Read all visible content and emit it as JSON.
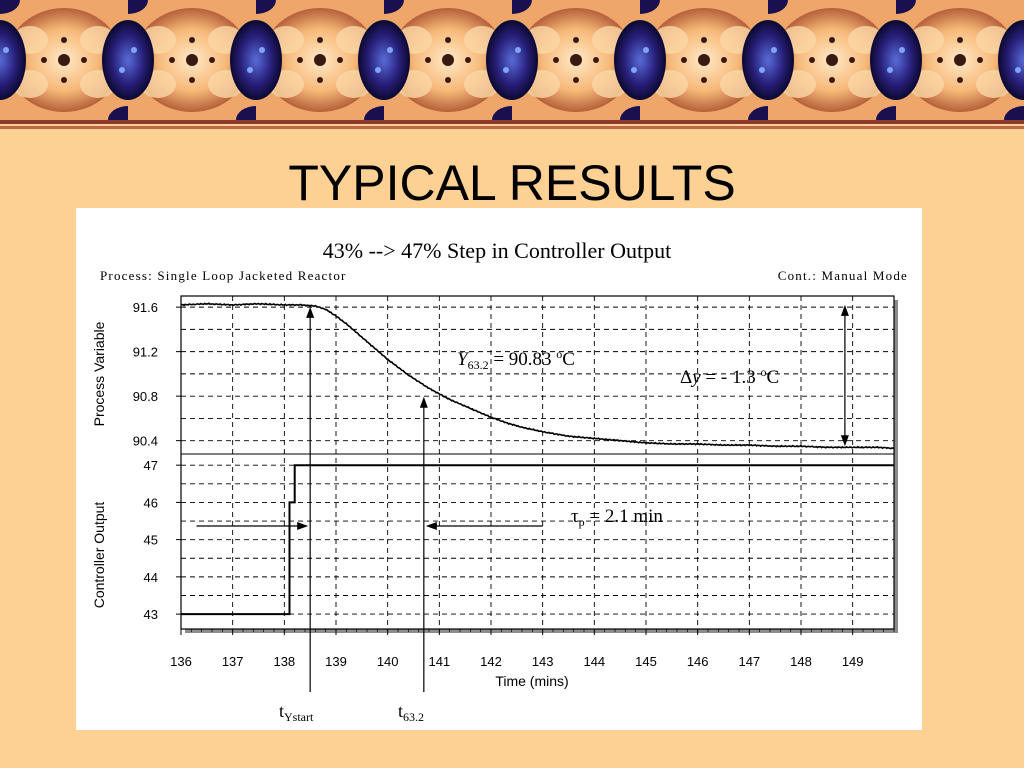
{
  "slide": {
    "title": "TYPICAL RESULTS"
  },
  "chart_data": {
    "type": "line",
    "title": "43% --> 47% Step in Controller Output",
    "subtitle_left": "Process: Single Loop Jacketed Reactor",
    "subtitle_right": "Cont.: Manual Mode",
    "xlabel": "Time (mins)",
    "xlim": [
      136,
      149.8
    ],
    "xticks": [
      136,
      137,
      138,
      139,
      140,
      141,
      142,
      143,
      144,
      145,
      146,
      147,
      148,
      149
    ],
    "grid": true,
    "panels": [
      {
        "name": "process-variable",
        "ylabel": "Process Variable",
        "ylim": [
          90.28,
          91.7
        ],
        "yticks": [
          "91.6",
          "91.2",
          "90.8",
          "90.4"
        ],
        "x": [
          136.0,
          136.5,
          137.0,
          137.5,
          138.0,
          138.3,
          138.6,
          138.8,
          139.0,
          139.2,
          139.4,
          139.6,
          139.8,
          140.0,
          140.2,
          140.4,
          140.6,
          140.8,
          141.0,
          141.2,
          141.5,
          141.8,
          142.0,
          142.3,
          142.6,
          143.0,
          143.5,
          144.0,
          144.5,
          145.0,
          145.5,
          146.0,
          146.5,
          147.0,
          147.5,
          148.0,
          148.5,
          149.0,
          149.5,
          149.8
        ],
        "y": [
          91.62,
          91.63,
          91.62,
          91.63,
          91.62,
          91.62,
          91.61,
          91.58,
          91.52,
          91.45,
          91.37,
          91.29,
          91.21,
          91.13,
          91.06,
          90.99,
          90.93,
          90.87,
          90.82,
          90.77,
          90.71,
          90.65,
          90.61,
          90.56,
          90.52,
          90.48,
          90.44,
          90.42,
          90.4,
          90.38,
          90.37,
          90.37,
          90.36,
          90.36,
          90.35,
          90.35,
          90.34,
          90.34,
          90.34,
          90.33
        ]
      },
      {
        "name": "controller-output",
        "ylabel": "Controller Output",
        "ylim": [
          42.6,
          47.3
        ],
        "yticks": [
          "47",
          "46",
          "45",
          "44",
          "43"
        ],
        "x": [
          136.0,
          138.1,
          138.1,
          138.2,
          138.2,
          149.8
        ],
        "y": [
          43,
          43,
          46.0,
          46.0,
          47,
          47
        ]
      }
    ],
    "annotations": {
      "y632_prefix": "Y",
      "y632_sub": "63.2",
      "y632_value": " = 90.83 ",
      "y632_unit_o": "o",
      "y632_unit_c": "C",
      "dy_prefix": "Δ",
      "dy_var": "y",
      "dy_value": " = - 1.3 ",
      "dy_unit_o": "o",
      "dy_unit_c": "C",
      "taup_sym": "τ",
      "taup_sub": "p",
      "taup_value": " = 2.1 min",
      "tystart_t": "t",
      "tystart_sub": "Ystart",
      "t632_t": "t",
      "t632_sub": "63.2"
    },
    "markers": {
      "t_ystart": 138.5,
      "t_632": 140.7,
      "y_632": 90.83,
      "dy_x": 148.85,
      "dy_top": 91.62,
      "dy_bottom": 90.35
    }
  },
  "colors": {
    "slide_background": "#fdd093",
    "figure_background": "#ffffff",
    "rule_dark": "#8a3b2c",
    "rule_light": "#c06545",
    "banner_dark": "#1a0f4a",
    "banner_peach": "#f8c48a"
  }
}
